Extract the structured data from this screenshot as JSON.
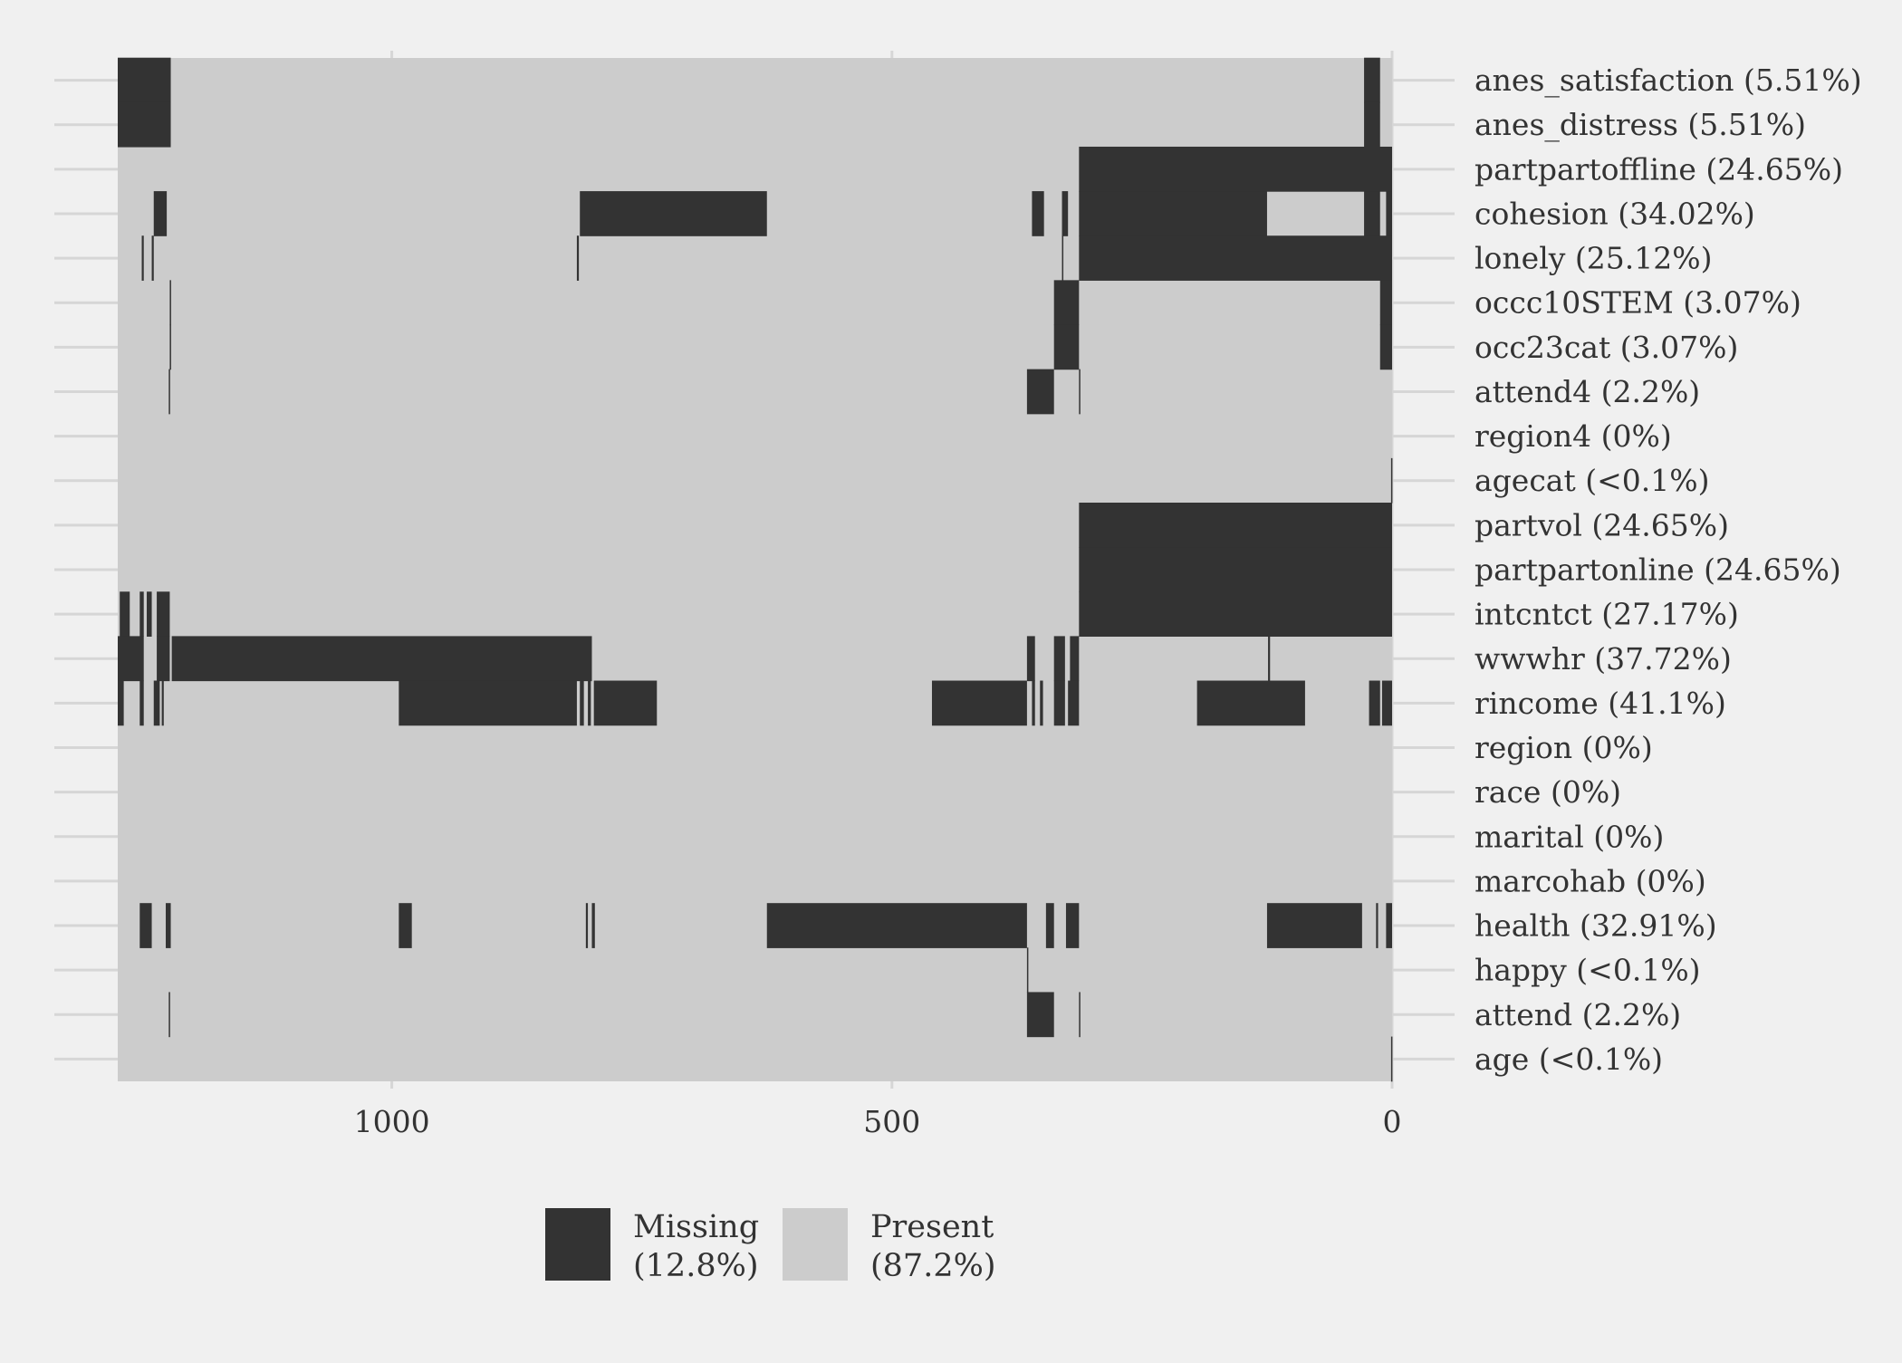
{
  "chart_data": {
    "type": "heatmap",
    "title": "",
    "xlabel": "",
    "ylabel": "",
    "x_reversed": true,
    "xlim": [
      0,
      1274
    ],
    "x_ticks": [
      1000,
      500,
      0
    ],
    "x_tick_labels": [
      "1000",
      "500",
      "0"
    ],
    "colors": {
      "missing": "#333333",
      "present": "#cccccc",
      "background": "#f0f0f0",
      "grid": "#d6d6d6"
    },
    "variables": [
      {
        "label": "anes_satisfaction (5.51%)",
        "missing_ranges": [
          [
            1274,
            1221
          ],
          [
            28,
            12
          ]
        ]
      },
      {
        "label": "anes_distress (5.51%)",
        "missing_ranges": [
          [
            1274,
            1221
          ],
          [
            28,
            12
          ]
        ]
      },
      {
        "label": "partpartoffline (24.65%)",
        "missing_ranges": [
          [
            313,
            0
          ]
        ]
      },
      {
        "label": "cohesion (34.02%)",
        "missing_ranges": [
          [
            1238,
            1225
          ],
          [
            812,
            625
          ],
          [
            360,
            348
          ],
          [
            330,
            324
          ],
          [
            313,
            125
          ],
          [
            28,
            12
          ],
          [
            6,
            0
          ]
        ]
      },
      {
        "label": "lonely (25.12%)",
        "missing_ranges": [
          [
            1250,
            1248
          ],
          [
            1240,
            1238
          ],
          [
            815,
            813
          ],
          [
            330,
            329
          ],
          [
            313,
            0
          ]
        ]
      },
      {
        "label": "occc10STEM (3.07%)",
        "missing_ranges": [
          [
            1222,
            1221
          ],
          [
            338,
            313
          ],
          [
            12,
            0
          ]
        ]
      },
      {
        "label": "occ23cat (3.07%)",
        "missing_ranges": [
          [
            1222,
            1221
          ],
          [
            338,
            313
          ],
          [
            12,
            0
          ]
        ]
      },
      {
        "label": "attend4 (2.2%)",
        "missing_ranges": [
          [
            1223,
            1222
          ],
          [
            365,
            338
          ],
          [
            313,
            312
          ]
        ]
      },
      {
        "label": "region4 (0%)",
        "missing_ranges": []
      },
      {
        "label": "agecat (<0.1%)",
        "missing_ranges": [
          [
            1,
            0
          ]
        ]
      },
      {
        "label": "partvol (24.65%)",
        "missing_ranges": [
          [
            313,
            0
          ]
        ]
      },
      {
        "label": "partpartonline (24.65%)",
        "missing_ranges": [
          [
            313,
            0
          ]
        ]
      },
      {
        "label": "intcntct (27.17%)",
        "missing_ranges": [
          [
            1272,
            1262
          ],
          [
            1252,
            1248
          ],
          [
            1245,
            1240
          ],
          [
            1235,
            1222
          ],
          [
            313,
            0
          ]
        ]
      },
      {
        "label": "wwwhr (37.72%)",
        "missing_ranges": [
          [
            1274,
            1248
          ],
          [
            1235,
            1222
          ],
          [
            1220,
            800
          ],
          [
            365,
            357
          ],
          [
            338,
            327
          ],
          [
            322,
            313
          ],
          [
            124,
            122
          ]
        ]
      },
      {
        "label": "rincome (41.1%)",
        "missing_ranges": [
          [
            1274,
            1268
          ],
          [
            1252,
            1248
          ],
          [
            1238,
            1232
          ],
          [
            1230,
            1228
          ],
          [
            993,
            815
          ],
          [
            812,
            808
          ],
          [
            804,
            801
          ],
          [
            798,
            735
          ],
          [
            460,
            365
          ],
          [
            360,
            357
          ],
          [
            352,
            349
          ],
          [
            338,
            327
          ],
          [
            324,
            313
          ],
          [
            195,
            87
          ],
          [
            23,
            12
          ],
          [
            10,
            0
          ]
        ]
      },
      {
        "label": "region (0%)",
        "missing_ranges": []
      },
      {
        "label": "race (0%)",
        "missing_ranges": []
      },
      {
        "label": "marital (0%)",
        "missing_ranges": []
      },
      {
        "label": "marcohab (0%)",
        "missing_ranges": []
      },
      {
        "label": "health (32.91%)",
        "missing_ranges": [
          [
            1252,
            1240
          ],
          [
            1226,
            1221
          ],
          [
            993,
            980
          ],
          [
            806,
            804
          ],
          [
            800,
            797
          ],
          [
            625,
            365
          ],
          [
            346,
            338
          ],
          [
            326,
            313
          ],
          [
            125,
            30
          ],
          [
            16,
            14
          ],
          [
            6,
            0
          ]
        ]
      },
      {
        "label": "happy (<0.1%)",
        "missing_ranges": [
          [
            365,
            364
          ]
        ]
      },
      {
        "label": "attend (2.2%)",
        "missing_ranges": [
          [
            1223,
            1222
          ],
          [
            365,
            338
          ],
          [
            313,
            312
          ]
        ]
      },
      {
        "label": "age (<0.1%)",
        "missing_ranges": [
          [
            1,
            0
          ]
        ]
      }
    ],
    "legend": {
      "placement": "bottom",
      "entries": [
        {
          "key": "missing",
          "line1": "Missing",
          "line2": "(12.8%)"
        },
        {
          "key": "present",
          "line1": "Present",
          "line2": "(87.2%)"
        }
      ]
    }
  }
}
